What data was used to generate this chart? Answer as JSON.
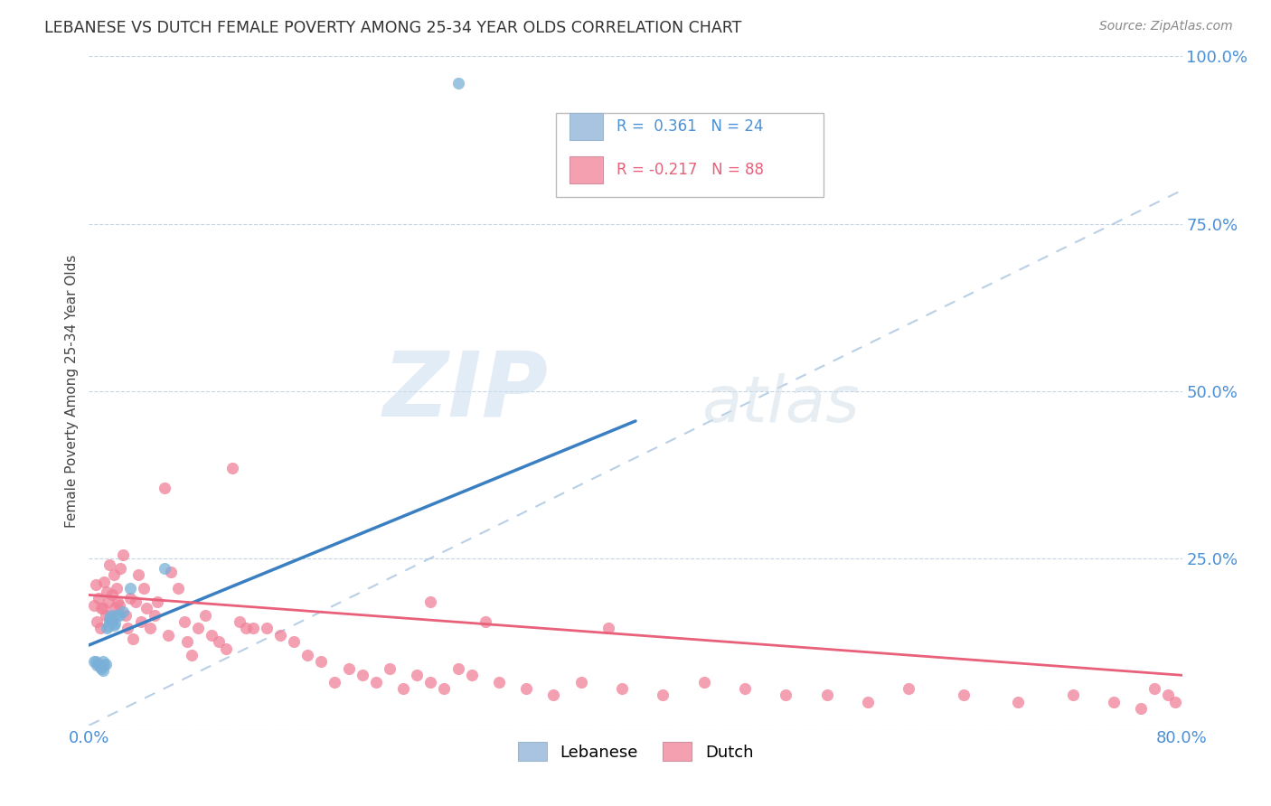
{
  "title": "LEBANESE VS DUTCH FEMALE POVERTY AMONG 25-34 YEAR OLDS CORRELATION CHART",
  "source": "Source: ZipAtlas.com",
  "ylabel": "Female Poverty Among 25-34 Year Olds",
  "xlim": [
    0.0,
    0.8
  ],
  "ylim": [
    0.0,
    1.0
  ],
  "legend_r_lebanese": "0.361",
  "legend_n_lebanese": "24",
  "legend_r_dutch": "-0.217",
  "legend_n_dutch": "88",
  "lebanese_color": "#a8c4e0",
  "dutch_color": "#f4a0b0",
  "lebanese_scatter_color": "#7ab0d8",
  "dutch_scatter_color": "#f08098",
  "trendline_lebanese_color": "#3a7fc1",
  "trendline_dutch_color": "#e8607a",
  "background_color": "#ffffff",
  "grid_color": "#c0d0e0",
  "watermark_zip": "ZIP",
  "watermark_atlas": "atlas",
  "trendline_leb_x0": 0.0,
  "trendline_leb_y0": 0.12,
  "trendline_leb_x1": 0.4,
  "trendline_leb_y1": 0.455,
  "trendline_dutch_x0": 0.0,
  "trendline_dutch_y0": 0.195,
  "trendline_dutch_x1": 0.8,
  "trendline_dutch_y1": 0.075,
  "trendline_dashed_x0": 0.0,
  "trendline_dashed_y0": 0.0,
  "trendline_dashed_x1": 0.8,
  "trendline_dashed_y1": 0.8,
  "lebanese_x": [
    0.004,
    0.005,
    0.006,
    0.007,
    0.008,
    0.009,
    0.01,
    0.01,
    0.011,
    0.012,
    0.013,
    0.014,
    0.015,
    0.015,
    0.016,
    0.017,
    0.018,
    0.019,
    0.02,
    0.022,
    0.025,
    0.03,
    0.055,
    0.27
  ],
  "lebanese_y": [
    0.095,
    0.095,
    0.09,
    0.092,
    0.088,
    0.085,
    0.082,
    0.095,
    0.09,
    0.092,
    0.145,
    0.148,
    0.155,
    0.16,
    0.165,
    0.155,
    0.15,
    0.152,
    0.165,
    0.165,
    0.17,
    0.205,
    0.235,
    0.96
  ],
  "dutch_x": [
    0.004,
    0.005,
    0.006,
    0.007,
    0.008,
    0.009,
    0.01,
    0.011,
    0.012,
    0.013,
    0.014,
    0.015,
    0.016,
    0.017,
    0.018,
    0.019,
    0.02,
    0.021,
    0.022,
    0.023,
    0.025,
    0.027,
    0.028,
    0.03,
    0.032,
    0.034,
    0.036,
    0.038,
    0.04,
    0.042,
    0.045,
    0.048,
    0.05,
    0.055,
    0.058,
    0.06,
    0.065,
    0.07,
    0.072,
    0.075,
    0.08,
    0.085,
    0.09,
    0.095,
    0.1,
    0.105,
    0.11,
    0.115,
    0.12,
    0.13,
    0.14,
    0.15,
    0.16,
    0.17,
    0.18,
    0.19,
    0.2,
    0.21,
    0.22,
    0.23,
    0.24,
    0.25,
    0.26,
    0.27,
    0.28,
    0.3,
    0.32,
    0.34,
    0.36,
    0.39,
    0.42,
    0.45,
    0.48,
    0.51,
    0.54,
    0.57,
    0.6,
    0.64,
    0.68,
    0.72,
    0.75,
    0.77,
    0.78,
    0.79,
    0.795,
    0.25,
    0.29,
    0.38
  ],
  "dutch_y": [
    0.18,
    0.21,
    0.155,
    0.19,
    0.145,
    0.175,
    0.175,
    0.215,
    0.165,
    0.2,
    0.185,
    0.24,
    0.155,
    0.195,
    0.225,
    0.175,
    0.205,
    0.185,
    0.18,
    0.235,
    0.255,
    0.165,
    0.145,
    0.19,
    0.13,
    0.185,
    0.225,
    0.155,
    0.205,
    0.175,
    0.145,
    0.165,
    0.185,
    0.355,
    0.135,
    0.23,
    0.205,
    0.155,
    0.125,
    0.105,
    0.145,
    0.165,
    0.135,
    0.125,
    0.115,
    0.385,
    0.155,
    0.145,
    0.145,
    0.145,
    0.135,
    0.125,
    0.105,
    0.095,
    0.065,
    0.085,
    0.075,
    0.065,
    0.085,
    0.055,
    0.075,
    0.065,
    0.055,
    0.085,
    0.075,
    0.065,
    0.055,
    0.045,
    0.065,
    0.055,
    0.045,
    0.065,
    0.055,
    0.045,
    0.045,
    0.035,
    0.055,
    0.045,
    0.035,
    0.045,
    0.035,
    0.025,
    0.055,
    0.045,
    0.035,
    0.185,
    0.155,
    0.145
  ]
}
